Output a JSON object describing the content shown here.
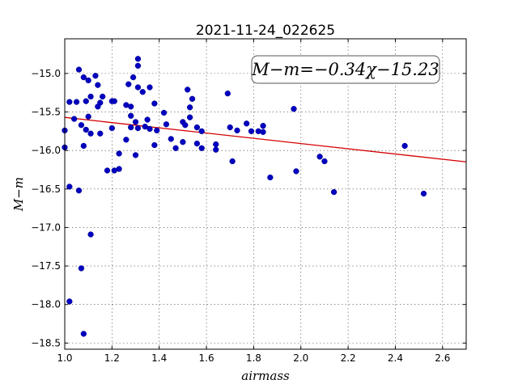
{
  "chart_data": {
    "type": "scatter",
    "title": "2021-11-24_022625",
    "xlabel": "airmass",
    "ylabel": "M−m",
    "xlim": [
      1.0,
      2.7
    ],
    "ylim": [
      -18.58,
      -14.55
    ],
    "y_inverted": true,
    "grid": true,
    "x_ticks": [
      1.0,
      1.2,
      1.4,
      1.6,
      1.8,
      2.0,
      2.2,
      2.4,
      2.6
    ],
    "x_tick_labels": [
      "1.0",
      "1.2",
      "1.4",
      "1.6",
      "1.8",
      "2.0",
      "2.2",
      "2.4",
      "2.6"
    ],
    "y_ticks": [
      -15.0,
      -15.5,
      -16.0,
      -16.5,
      -17.0,
      -17.5,
      -18.0,
      -18.5
    ],
    "y_tick_labels": [
      "−15.0",
      "−15.5",
      "−16.0",
      "−16.5",
      "−17.0",
      "−17.5",
      "−18.0",
      "−18.5"
    ],
    "annotation": "M−m=−0.34χ−15.23",
    "fit": {
      "slope": -0.34,
      "intercept": -15.23
    },
    "points": [
      {
        "x": 1.0,
        "y": -15.74
      },
      {
        "x": 1.0,
        "y": -15.96
      },
      {
        "x": 1.02,
        "y": -15.37
      },
      {
        "x": 1.02,
        "y": -16.47
      },
      {
        "x": 1.02,
        "y": -17.96
      },
      {
        "x": 1.04,
        "y": -15.59
      },
      {
        "x": 1.05,
        "y": -15.37
      },
      {
        "x": 1.06,
        "y": -14.95
      },
      {
        "x": 1.06,
        "y": -16.52
      },
      {
        "x": 1.07,
        "y": -15.67
      },
      {
        "x": 1.07,
        "y": -17.53
      },
      {
        "x": 1.08,
        "y": -15.05
      },
      {
        "x": 1.08,
        "y": -15.94
      },
      {
        "x": 1.08,
        "y": -18.38
      },
      {
        "x": 1.09,
        "y": -15.73
      },
      {
        "x": 1.09,
        "y": -15.36
      },
      {
        "x": 1.1,
        "y": -15.09
      },
      {
        "x": 1.1,
        "y": -15.56
      },
      {
        "x": 1.11,
        "y": -15.3
      },
      {
        "x": 1.11,
        "y": -15.78
      },
      {
        "x": 1.11,
        "y": -17.09
      },
      {
        "x": 1.13,
        "y": -15.03
      },
      {
        "x": 1.14,
        "y": -15.15
      },
      {
        "x": 1.14,
        "y": -15.43
      },
      {
        "x": 1.15,
        "y": -15.38
      },
      {
        "x": 1.15,
        "y": -15.78
      },
      {
        "x": 1.16,
        "y": -15.3
      },
      {
        "x": 1.18,
        "y": -16.26
      },
      {
        "x": 1.2,
        "y": -15.36
      },
      {
        "x": 1.2,
        "y": -15.71
      },
      {
        "x": 1.21,
        "y": -15.36
      },
      {
        "x": 1.21,
        "y": -16.26
      },
      {
        "x": 1.23,
        "y": -16.04
      },
      {
        "x": 1.23,
        "y": -16.24
      },
      {
        "x": 1.26,
        "y": -15.41
      },
      {
        "x": 1.26,
        "y": -15.86
      },
      {
        "x": 1.27,
        "y": -15.14
      },
      {
        "x": 1.28,
        "y": -15.43
      },
      {
        "x": 1.28,
        "y": -15.55
      },
      {
        "x": 1.28,
        "y": -15.7
      },
      {
        "x": 1.29,
        "y": -15.05
      },
      {
        "x": 1.3,
        "y": -15.63
      },
      {
        "x": 1.3,
        "y": -16.06
      },
      {
        "x": 1.31,
        "y": -14.81
      },
      {
        "x": 1.31,
        "y": -14.9
      },
      {
        "x": 1.31,
        "y": -15.18
      },
      {
        "x": 1.31,
        "y": -15.71
      },
      {
        "x": 1.33,
        "y": -15.24
      },
      {
        "x": 1.34,
        "y": -15.69
      },
      {
        "x": 1.35,
        "y": -15.6
      },
      {
        "x": 1.36,
        "y": -15.18
      },
      {
        "x": 1.36,
        "y": -15.72
      },
      {
        "x": 1.38,
        "y": -15.39
      },
      {
        "x": 1.38,
        "y": -15.93
      },
      {
        "x": 1.39,
        "y": -15.74
      },
      {
        "x": 1.42,
        "y": -15.51
      },
      {
        "x": 1.43,
        "y": -15.66
      },
      {
        "x": 1.45,
        "y": -15.85
      },
      {
        "x": 1.47,
        "y": -15.97
      },
      {
        "x": 1.5,
        "y": -15.63
      },
      {
        "x": 1.5,
        "y": -15.89
      },
      {
        "x": 1.51,
        "y": -15.67
      },
      {
        "x": 1.52,
        "y": -15.21
      },
      {
        "x": 1.53,
        "y": -15.44
      },
      {
        "x": 1.53,
        "y": -15.57
      },
      {
        "x": 1.54,
        "y": -15.33
      },
      {
        "x": 1.56,
        "y": -15.7
      },
      {
        "x": 1.56,
        "y": -15.91
      },
      {
        "x": 1.58,
        "y": -15.75
      },
      {
        "x": 1.58,
        "y": -15.97
      },
      {
        "x": 1.64,
        "y": -15.92
      },
      {
        "x": 1.64,
        "y": -15.99
      },
      {
        "x": 1.69,
        "y": -15.26
      },
      {
        "x": 1.7,
        "y": -15.7
      },
      {
        "x": 1.71,
        "y": -16.14
      },
      {
        "x": 1.73,
        "y": -15.74
      },
      {
        "x": 1.77,
        "y": -15.65
      },
      {
        "x": 1.79,
        "y": -15.75
      },
      {
        "x": 1.82,
        "y": -15.75
      },
      {
        "x": 1.84,
        "y": -15.68
      },
      {
        "x": 1.84,
        "y": -15.76
      },
      {
        "x": 1.87,
        "y": -16.35
      },
      {
        "x": 1.97,
        "y": -15.46
      },
      {
        "x": 1.98,
        "y": -16.27
      },
      {
        "x": 2.08,
        "y": -16.08
      },
      {
        "x": 2.1,
        "y": -16.14
      },
      {
        "x": 2.14,
        "y": -16.54
      },
      {
        "x": 2.44,
        "y": -15.94
      },
      {
        "x": 2.52,
        "y": -16.56
      }
    ]
  }
}
